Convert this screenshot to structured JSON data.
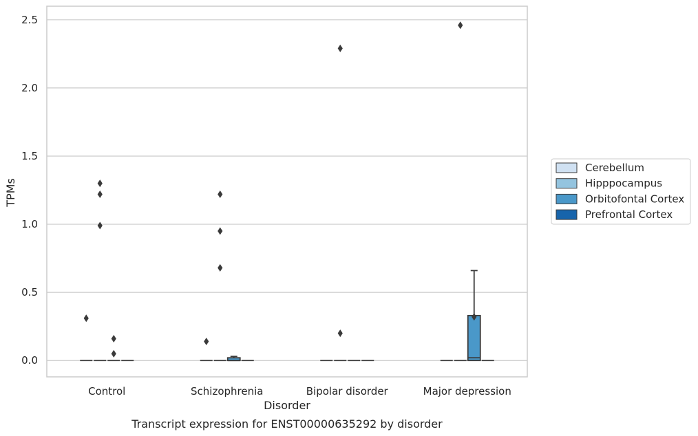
{
  "chart_data": {
    "type": "box",
    "xlabel": "Disorder",
    "ylabel": "TPMs",
    "caption": "Transcript expression for ENST00000635292 by disorder",
    "categories": [
      "Control",
      "Schizophrenia",
      "Bipolar disorder",
      "Major depression"
    ],
    "ylim": [
      -0.12,
      2.6
    ],
    "yticks": [
      0.0,
      0.5,
      1.0,
      1.5,
      2.0,
      2.5
    ],
    "ytick_labels": [
      "0.0",
      "0.5",
      "1.0",
      "1.5",
      "2.0",
      "2.5"
    ],
    "grid": "horizontal",
    "legend_position": "right",
    "series": [
      {
        "name": "Cerebellum",
        "color": "#d0e1f2",
        "boxes": [
          {
            "category": "Control",
            "q1": 0,
            "median": 0,
            "q3": 0,
            "whisker_low": 0,
            "whisker_high": 0,
            "outliers": [
              0.31
            ]
          },
          {
            "category": "Schizophrenia",
            "q1": 0,
            "median": 0,
            "q3": 0,
            "whisker_low": 0,
            "whisker_high": 0,
            "outliers": [
              0.14
            ]
          },
          {
            "category": "Bipolar disorder",
            "q1": 0,
            "median": 0,
            "q3": 0,
            "whisker_low": 0,
            "whisker_high": 0,
            "outliers": []
          },
          {
            "category": "Major depression",
            "q1": 0,
            "median": 0,
            "q3": 0,
            "whisker_low": 0,
            "whisker_high": 0,
            "outliers": []
          }
        ]
      },
      {
        "name": "Hipppocampus",
        "color": "#94c4df",
        "boxes": [
          {
            "category": "Control",
            "q1": 0,
            "median": 0,
            "q3": 0,
            "whisker_low": 0,
            "whisker_high": 0,
            "outliers": [
              1.3,
              1.22,
              0.99
            ]
          },
          {
            "category": "Schizophrenia",
            "q1": 0,
            "median": 0,
            "q3": 0,
            "whisker_low": 0,
            "whisker_high": 0,
            "outliers": [
              1.22,
              0.95,
              0.68
            ]
          },
          {
            "category": "Bipolar disorder",
            "q1": 0,
            "median": 0,
            "q3": 0,
            "whisker_low": 0,
            "whisker_high": 0,
            "outliers": [
              2.29,
              0.2
            ]
          },
          {
            "category": "Major depression",
            "q1": 0,
            "median": 0,
            "q3": 0,
            "whisker_low": 0,
            "whisker_high": 0,
            "outliers": [
              2.46
            ]
          }
        ]
      },
      {
        "name": "Orbitofontal Cortex",
        "color": "#4a98c9",
        "boxes": [
          {
            "category": "Control",
            "q1": 0,
            "median": 0,
            "q3": 0,
            "whisker_low": 0,
            "whisker_high": 0,
            "outliers": [
              0.16,
              0.05
            ]
          },
          {
            "category": "Schizophrenia",
            "q1": 0,
            "median": 0,
            "q3": 0.02,
            "whisker_low": 0,
            "whisker_high": 0.03,
            "outliers": []
          },
          {
            "category": "Bipolar disorder",
            "q1": 0,
            "median": 0,
            "q3": 0,
            "whisker_low": 0,
            "whisker_high": 0,
            "outliers": []
          },
          {
            "category": "Major depression",
            "q1": 0,
            "median": 0.02,
            "q3": 0.33,
            "whisker_low": 0,
            "whisker_high": 0.66,
            "outliers": [
              0.32
            ]
          }
        ]
      },
      {
        "name": "Prefrontal Cortex",
        "color": "#1764ab",
        "boxes": [
          {
            "category": "Control",
            "q1": 0,
            "median": 0,
            "q3": 0,
            "whisker_low": 0,
            "whisker_high": 0,
            "outliers": []
          },
          {
            "category": "Schizophrenia",
            "q1": 0,
            "median": 0,
            "q3": 0,
            "whisker_low": 0,
            "whisker_high": 0,
            "outliers": []
          },
          {
            "category": "Bipolar disorder",
            "q1": 0,
            "median": 0,
            "q3": 0,
            "whisker_low": 0,
            "whisker_high": 0,
            "outliers": []
          },
          {
            "category": "Major depression",
            "q1": 0,
            "median": 0,
            "q3": 0,
            "whisker_low": 0,
            "whisker_high": 0,
            "outliers": []
          }
        ]
      }
    ],
    "box_edge_color": "#3a3a3a",
    "grid_color": "#cccccc",
    "frame_color": "#cccccc"
  }
}
